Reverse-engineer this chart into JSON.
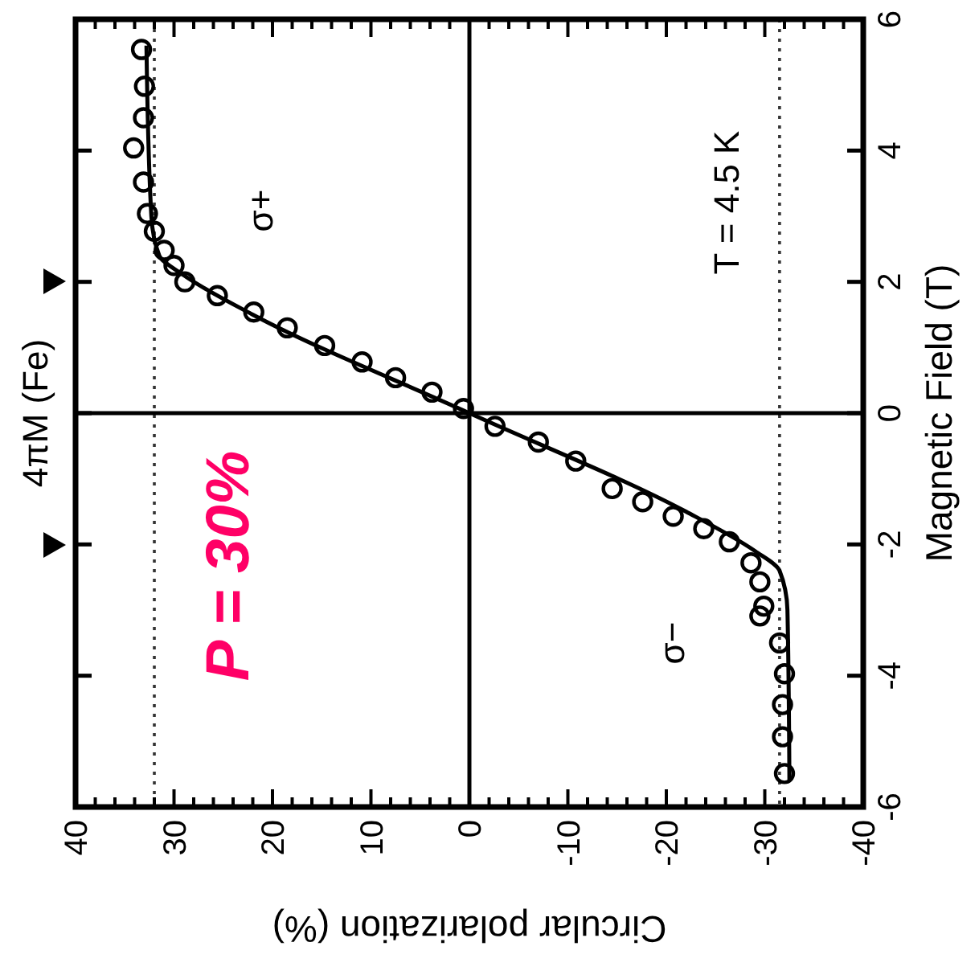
{
  "chart_data": {
    "type": "scatter",
    "xlabel": "Circular polarization (%)",
    "ylabel": "Magnetic Field (T)",
    "xlim": [
      40,
      -40
    ],
    "xticks": [
      40,
      {
        "value": 38,
        "label": null
      },
      {
        "value": 36,
        "label": null
      },
      {
        "value": 34,
        "label": null
      },
      {
        "value": 32,
        "label": null
      },
      30,
      {
        "value": 28,
        "label": null
      },
      {
        "value": 26,
        "label": null
      },
      {
        "value": 24,
        "label": null
      },
      {
        "value": 22,
        "label": null
      },
      20,
      {
        "value": 18,
        "label": null
      },
      {
        "value": 16,
        "label": null
      },
      {
        "value": 14,
        "label": null
      },
      {
        "value": 12,
        "label": null
      },
      10,
      {
        "value": 8,
        "label": null
      },
      {
        "value": 6,
        "label": null
      },
      {
        "value": 4,
        "label": null
      },
      {
        "value": 2,
        "label": null
      },
      0,
      {
        "value": -2,
        "label": null
      },
      {
        "value": -4,
        "label": null
      },
      {
        "value": -6,
        "label": null
      },
      {
        "value": -8,
        "label": null
      },
      -10,
      {
        "value": -12,
        "label": null
      },
      {
        "value": -14,
        "label": null
      },
      {
        "value": -16,
        "label": null
      },
      {
        "value": -18,
        "label": null
      },
      -20,
      {
        "value": -22,
        "label": null
      },
      {
        "value": -24,
        "label": null
      },
      {
        "value": -26,
        "label": null
      },
      {
        "value": -28,
        "label": null
      },
      -30,
      {
        "value": -32,
        "label": null
      },
      {
        "value": -34,
        "label": null
      },
      {
        "value": -36,
        "label": null
      },
      {
        "value": -38,
        "label": null
      },
      -40
    ],
    "ylim": [
      -6,
      6
    ],
    "yticks": [
      -6,
      -4,
      -2,
      0,
      2,
      4,
      6
    ],
    "marker": "circle",
    "series": [
      {
        "color": "#000000",
        "x": [
          33.3,
          33,
          33.1,
          34.1,
          33.1,
          32.7,
          32,
          31,
          30,
          28.9,
          25.6,
          21.9,
          18.5,
          14.7,
          10.9,
          7.5,
          3.8,
          0.6,
          -2.6,
          -7,
          -10.8,
          -14.5,
          -17.6,
          -20.7,
          -23.8,
          -26.4,
          -28.6,
          -29.5,
          -29.9,
          -29.5,
          -31.5,
          -32,
          -31.8,
          -31.8,
          -32
        ],
        "values": [
          5.54,
          4.98,
          4.5,
          4.04,
          3.52,
          3.04,
          2.77,
          2.48,
          2.25,
          2.0,
          1.79,
          1.54,
          1.3,
          1.03,
          0.78,
          0.54,
          0.32,
          0.07,
          -0.2,
          -0.44,
          -0.73,
          -1.15,
          -1.35,
          -1.57,
          -1.76,
          -1.96,
          -2.28,
          -2.57,
          -2.94,
          -3.09,
          -3.5,
          -3.97,
          -4.44,
          -4.93,
          -5.49
        ]
      },
      {
        "type": "line",
        "marker": "none",
        "line_style": "solid",
        "color": "#000000",
        "x": [
          -32.5,
          -32.3,
          -31.5,
          -29,
          -22,
          0,
          22,
          29,
          31.5,
          32.3,
          32.8
        ],
        "values": [
          -5.6,
          -3,
          -2.4,
          -2.1,
          -1.5,
          0,
          1.5,
          2.1,
          2.4,
          3,
          5.6
        ]
      }
    ],
    "ref_lines": [
      {
        "axis": "x",
        "value": 32,
        "line_style": "dotted",
        "color": "#333333"
      },
      {
        "axis": "x",
        "value": -31.5,
        "line_style": "dotted",
        "color": "#333333"
      },
      {
        "axis": "x",
        "value": 0,
        "line_style": "solid",
        "color": "#000000"
      },
      {
        "axis": "y",
        "value": 0,
        "line_style": "solid",
        "color": "#000000"
      }
    ],
    "annotations": [
      "σ+",
      "σ−",
      "T = 4.5 K",
      "P = 30%",
      "4πM (Fe)"
    ]
  }
}
